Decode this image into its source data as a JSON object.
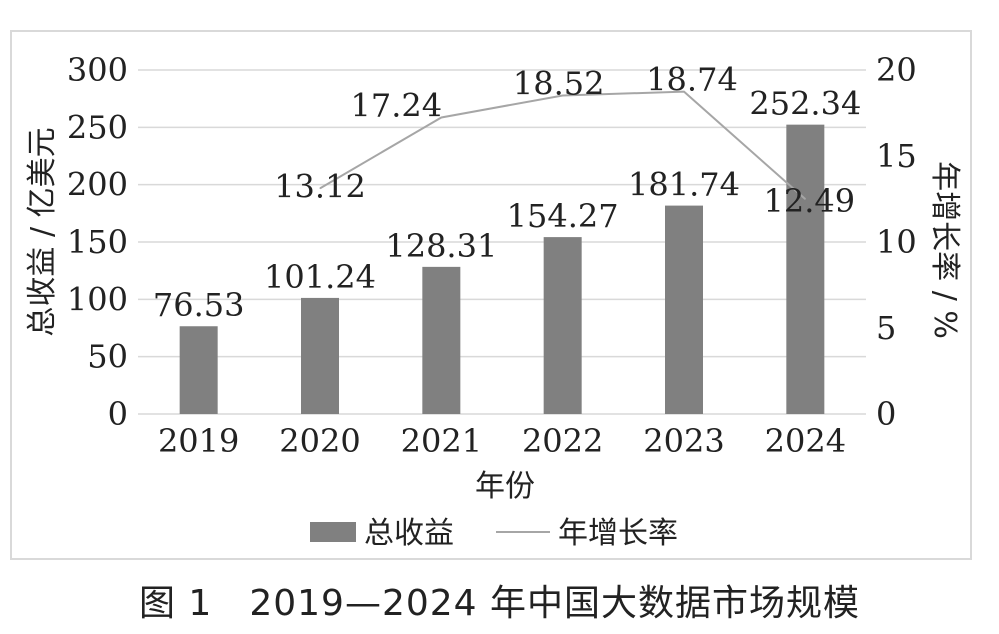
{
  "chart_data": {
    "type": "bar",
    "categories": [
      "2019",
      "2020",
      "2021",
      "2022",
      "2023",
      "2024"
    ],
    "xlabel": "年份",
    "ylabel": "总收益 / 亿美元",
    "y2label": "年增长率 / %",
    "ylim": [
      0,
      300
    ],
    "y2lim": [
      0,
      20
    ],
    "yticks": [
      "0",
      "50",
      "100",
      "150",
      "200",
      "250",
      "300"
    ],
    "y2ticks": [
      "0",
      "5",
      "10",
      "15",
      "20"
    ],
    "grid": true,
    "legend_position": "bottom",
    "series": [
      {
        "name": "总收益",
        "type": "bar",
        "axis": "left",
        "values": [
          76.53,
          101.24,
          128.31,
          154.27,
          181.74,
          252.34
        ],
        "labels": [
          "76.53",
          "101.24",
          "128.31",
          "154.27",
          "181.74",
          "252.34"
        ],
        "color": "#808080"
      },
      {
        "name": "年增长率",
        "type": "line",
        "axis": "right",
        "x": [
          "2020",
          "2021",
          "2022",
          "2023",
          "2024"
        ],
        "values": [
          13.12,
          17.24,
          18.52,
          18.74,
          12.49
        ],
        "labels": [
          "13.12",
          "17.24",
          "18.52",
          "18.74",
          "12.49"
        ],
        "color": "#a6a6a6"
      }
    ]
  },
  "caption": "图 1　2019—2024 年中国大数据市场规模",
  "colors": {
    "bar": "#808080",
    "line": "#a6a6a6",
    "grid": "#d9d9d9",
    "text": "#222222"
  }
}
